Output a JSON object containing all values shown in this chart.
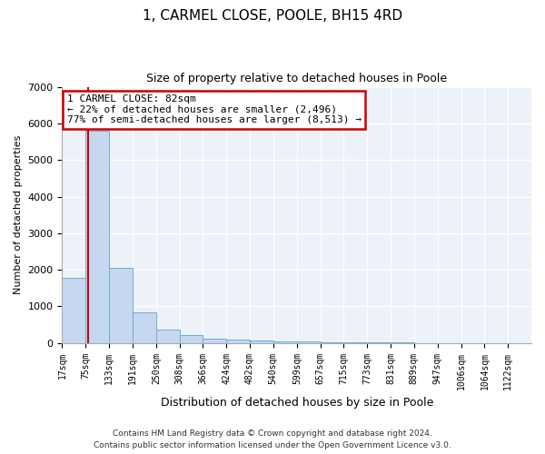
{
  "title": "1, CARMEL CLOSE, POOLE, BH15 4RD",
  "subtitle": "Size of property relative to detached houses in Poole",
  "xlabel": "Distribution of detached houses by size in Poole",
  "ylabel": "Number of detached properties",
  "bar_color": "#c5d8f0",
  "bar_edge_color": "#6baed6",
  "background_color": "#edf2f9",
  "grid_color": "#ffffff",
  "property_line_x": 82,
  "property_line_color": "#cc0000",
  "annotation_line1": "1 CARMEL CLOSE: 82sqm",
  "annotation_line2": "← 22% of detached houses are smaller (2,496)",
  "annotation_line3": "77% of semi-detached houses are larger (8,513) →",
  "annotation_box_color": "#ffffff",
  "annotation_box_edge_color": "#cc0000",
  "bin_edges": [
    17,
    75,
    133,
    191,
    250,
    308,
    366,
    424,
    482,
    540,
    599,
    657,
    715,
    773,
    831,
    889,
    947,
    1006,
    1064,
    1122,
    1180
  ],
  "bar_heights": [
    1770,
    5790,
    2060,
    840,
    360,
    230,
    115,
    95,
    75,
    50,
    35,
    25,
    18,
    12,
    8,
    6,
    5,
    4,
    3,
    2
  ],
  "ylim": [
    0,
    7000
  ],
  "yticks": [
    0,
    1000,
    2000,
    3000,
    4000,
    5000,
    6000,
    7000
  ],
  "footnote1": "Contains HM Land Registry data © Crown copyright and database right 2024.",
  "footnote2": "Contains public sector information licensed under the Open Government Licence v3.0."
}
